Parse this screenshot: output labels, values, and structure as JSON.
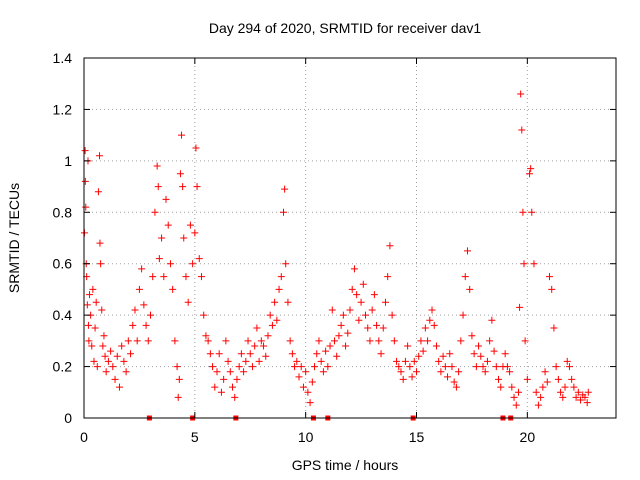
{
  "chart_data": {
    "type": "scatter",
    "title": "Day 294 of 2020, SRMTID for receiver dav1",
    "xlabel": "GPS time / hours",
    "ylabel": "SRMTID / TECUs",
    "xlim": [
      0,
      24
    ],
    "ylim": [
      0,
      1.4
    ],
    "xticks": [
      0,
      5,
      10,
      15,
      20
    ],
    "yticks": [
      0,
      0.2,
      0.4,
      0.6,
      0.8,
      1.0,
      1.2,
      1.4
    ],
    "ytick_labels": [
      "0",
      "0.2",
      "0.4",
      "0.6",
      "0.8",
      "1",
      "1.2",
      "1.4"
    ],
    "grid": true,
    "marker": "plus",
    "color": "#ff0000",
    "baseline_markers_x": [
      2.95,
      4.9,
      6.85,
      10.35,
      11.0,
      14.85,
      18.9,
      19.25
    ],
    "series": [
      {
        "name": "dav1",
        "points": [
          [
            0.02,
            0.72
          ],
          [
            0.05,
            1.04
          ],
          [
            0.06,
            0.92
          ],
          [
            0.08,
            0.82
          ],
          [
            0.1,
            0.6
          ],
          [
            0.12,
            0.55
          ],
          [
            0.15,
            0.44
          ],
          [
            0.18,
            1.0
          ],
          [
            0.2,
            0.36
          ],
          [
            0.22,
            0.3
          ],
          [
            0.25,
            0.48
          ],
          [
            0.3,
            0.4
          ],
          [
            0.35,
            0.28
          ],
          [
            0.4,
            0.5
          ],
          [
            0.45,
            0.22
          ],
          [
            0.5,
            0.35
          ],
          [
            0.55,
            0.45
          ],
          [
            0.6,
            0.2
          ],
          [
            0.65,
            0.88
          ],
          [
            0.7,
            1.02
          ],
          [
            0.72,
            0.68
          ],
          [
            0.75,
            0.6
          ],
          [
            0.8,
            0.42
          ],
          [
            0.85,
            0.28
          ],
          [
            0.9,
            0.32
          ],
          [
            0.95,
            0.24
          ],
          [
            1.0,
            0.18
          ],
          [
            1.1,
            0.22
          ],
          [
            1.2,
            0.26
          ],
          [
            1.3,
            0.2
          ],
          [
            1.4,
            0.15
          ],
          [
            1.5,
            0.24
          ],
          [
            1.6,
            0.12
          ],
          [
            1.7,
            0.28
          ],
          [
            1.8,
            0.22
          ],
          [
            1.9,
            0.18
          ],
          [
            2.0,
            0.3
          ],
          [
            2.1,
            0.25
          ],
          [
            2.2,
            0.36
          ],
          [
            2.3,
            0.42
          ],
          [
            2.4,
            0.3
          ],
          [
            2.5,
            0.5
          ],
          [
            2.6,
            0.58
          ],
          [
            2.7,
            0.44
          ],
          [
            2.8,
            0.36
          ],
          [
            2.9,
            0.3
          ],
          [
            3.0,
            0.4
          ],
          [
            3.1,
            0.55
          ],
          [
            3.2,
            0.8
          ],
          [
            3.3,
            0.98
          ],
          [
            3.35,
            0.9
          ],
          [
            3.4,
            0.62
          ],
          [
            3.5,
            0.7
          ],
          [
            3.6,
            0.55
          ],
          [
            3.7,
            0.85
          ],
          [
            3.8,
            0.75
          ],
          [
            3.9,
            0.6
          ],
          [
            4.0,
            0.5
          ],
          [
            4.1,
            0.3
          ],
          [
            4.2,
            0.2
          ],
          [
            4.25,
            0.08
          ],
          [
            4.3,
            0.15
          ],
          [
            4.35,
            0.95
          ],
          [
            4.4,
            1.1
          ],
          [
            4.45,
            0.9
          ],
          [
            4.5,
            0.7
          ],
          [
            4.6,
            0.55
          ],
          [
            4.7,
            0.45
          ],
          [
            4.8,
            0.75
          ],
          [
            4.9,
            0.6
          ],
          [
            5.0,
            0.72
          ],
          [
            5.05,
            1.05
          ],
          [
            5.1,
            0.9
          ],
          [
            5.2,
            0.62
          ],
          [
            5.3,
            0.55
          ],
          [
            5.4,
            0.4
          ],
          [
            5.5,
            0.32
          ],
          [
            5.6,
            0.3
          ],
          [
            5.7,
            0.25
          ],
          [
            5.8,
            0.2
          ],
          [
            5.9,
            0.12
          ],
          [
            6.0,
            0.18
          ],
          [
            6.1,
            0.25
          ],
          [
            6.2,
            0.1
          ],
          [
            6.3,
            0.15
          ],
          [
            6.4,
            0.3
          ],
          [
            6.5,
            0.22
          ],
          [
            6.6,
            0.18
          ],
          [
            6.7,
            0.12
          ],
          [
            6.8,
            0.08
          ],
          [
            6.9,
            0.15
          ],
          [
            7.0,
            0.2
          ],
          [
            7.1,
            0.25
          ],
          [
            7.2,
            0.18
          ],
          [
            7.3,
            0.22
          ],
          [
            7.4,
            0.3
          ],
          [
            7.5,
            0.25
          ],
          [
            7.6,
            0.2
          ],
          [
            7.7,
            0.28
          ],
          [
            7.8,
            0.35
          ],
          [
            7.9,
            0.22
          ],
          [
            8.0,
            0.3
          ],
          [
            8.1,
            0.28
          ],
          [
            8.2,
            0.24
          ],
          [
            8.3,
            0.32
          ],
          [
            8.4,
            0.4
          ],
          [
            8.5,
            0.36
          ],
          [
            8.6,
            0.45
          ],
          [
            8.7,
            0.38
          ],
          [
            8.8,
            0.5
          ],
          [
            8.9,
            0.55
          ],
          [
            9.0,
            0.8
          ],
          [
            9.05,
            0.89
          ],
          [
            9.1,
            0.6
          ],
          [
            9.2,
            0.45
          ],
          [
            9.3,
            0.3
          ],
          [
            9.4,
            0.25
          ],
          [
            9.5,
            0.2
          ],
          [
            9.6,
            0.22
          ],
          [
            9.7,
            0.16
          ],
          [
            9.8,
            0.2
          ],
          [
            9.9,
            0.12
          ],
          [
            10.0,
            0.18
          ],
          [
            10.1,
            0.1
          ],
          [
            10.2,
            0.06
          ],
          [
            10.3,
            0.14
          ],
          [
            10.4,
            0.2
          ],
          [
            10.5,
            0.25
          ],
          [
            10.6,
            0.3
          ],
          [
            10.7,
            0.22
          ],
          [
            10.8,
            0.18
          ],
          [
            10.9,
            0.26
          ],
          [
            11.0,
            0.2
          ],
          [
            11.1,
            0.28
          ],
          [
            11.2,
            0.42
          ],
          [
            11.3,
            0.3
          ],
          [
            11.4,
            0.24
          ],
          [
            11.5,
            0.32
          ],
          [
            11.6,
            0.36
          ],
          [
            11.7,
            0.4
          ],
          [
            11.8,
            0.28
          ],
          [
            11.9,
            0.33
          ],
          [
            12.0,
            0.42
          ],
          [
            12.1,
            0.5
          ],
          [
            12.2,
            0.58
          ],
          [
            12.3,
            0.48
          ],
          [
            12.4,
            0.38
          ],
          [
            12.5,
            0.45
          ],
          [
            12.6,
            0.52
          ],
          [
            12.7,
            0.4
          ],
          [
            12.8,
            0.35
          ],
          [
            12.9,
            0.3
          ],
          [
            13.0,
            0.42
          ],
          [
            13.1,
            0.48
          ],
          [
            13.2,
            0.36
          ],
          [
            13.3,
            0.3
          ],
          [
            13.4,
            0.25
          ],
          [
            13.5,
            0.35
          ],
          [
            13.6,
            0.45
          ],
          [
            13.7,
            0.55
          ],
          [
            13.8,
            0.67
          ],
          [
            13.9,
            0.4
          ],
          [
            14.0,
            0.3
          ],
          [
            14.1,
            0.22
          ],
          [
            14.2,
            0.2
          ],
          [
            14.3,
            0.18
          ],
          [
            14.4,
            0.15
          ],
          [
            14.5,
            0.22
          ],
          [
            14.6,
            0.28
          ],
          [
            14.7,
            0.2
          ],
          [
            14.8,
            0.16
          ],
          [
            14.9,
            0.22
          ],
          [
            15.0,
            0.18
          ],
          [
            15.1,
            0.24
          ],
          [
            15.2,
            0.3
          ],
          [
            15.3,
            0.26
          ],
          [
            15.4,
            0.35
          ],
          [
            15.5,
            0.3
          ],
          [
            15.6,
            0.38
          ],
          [
            15.7,
            0.42
          ],
          [
            15.8,
            0.36
          ],
          [
            15.9,
            0.28
          ],
          [
            16.0,
            0.22
          ],
          [
            16.1,
            0.18
          ],
          [
            16.2,
            0.24
          ],
          [
            16.3,
            0.2
          ],
          [
            16.4,
            0.16
          ],
          [
            16.5,
            0.25
          ],
          [
            16.6,
            0.2
          ],
          [
            16.7,
            0.14
          ],
          [
            16.8,
            0.12
          ],
          [
            16.9,
            0.18
          ],
          [
            17.0,
            0.3
          ],
          [
            17.1,
            0.4
          ],
          [
            17.2,
            0.55
          ],
          [
            17.3,
            0.65
          ],
          [
            17.4,
            0.5
          ],
          [
            17.5,
            0.32
          ],
          [
            17.6,
            0.25
          ],
          [
            17.7,
            0.2
          ],
          [
            17.8,
            0.28
          ],
          [
            17.9,
            0.24
          ],
          [
            18.0,
            0.2
          ],
          [
            18.1,
            0.18
          ],
          [
            18.2,
            0.22
          ],
          [
            18.3,
            0.3
          ],
          [
            18.4,
            0.38
          ],
          [
            18.5,
            0.26
          ],
          [
            18.6,
            0.2
          ],
          [
            18.7,
            0.15
          ],
          [
            18.8,
            0.12
          ],
          [
            18.9,
            0.2
          ],
          [
            19.0,
            0.25
          ],
          [
            19.1,
            0.2
          ],
          [
            19.2,
            0.18
          ],
          [
            19.3,
            0.12
          ],
          [
            19.4,
            0.08
          ],
          [
            19.5,
            0.05
          ],
          [
            19.6,
            0.1
          ],
          [
            19.65,
            0.43
          ],
          [
            19.7,
            1.26
          ],
          [
            19.75,
            1.12
          ],
          [
            19.8,
            0.8
          ],
          [
            19.85,
            0.6
          ],
          [
            19.9,
            0.3
          ],
          [
            20.0,
            0.15
          ],
          [
            20.1,
            0.95
          ],
          [
            20.15,
            0.97
          ],
          [
            20.2,
            0.8
          ],
          [
            20.3,
            0.6
          ],
          [
            20.4,
            0.1
          ],
          [
            20.5,
            0.05
          ],
          [
            20.6,
            0.08
          ],
          [
            20.7,
            0.12
          ],
          [
            20.8,
            0.18
          ],
          [
            20.9,
            0.14
          ],
          [
            21.0,
            0.55
          ],
          [
            21.1,
            0.5
          ],
          [
            21.2,
            0.35
          ],
          [
            21.3,
            0.2
          ],
          [
            21.4,
            0.15
          ],
          [
            21.5,
            0.1
          ],
          [
            21.6,
            0.08
          ],
          [
            21.7,
            0.12
          ],
          [
            21.8,
            0.22
          ],
          [
            21.9,
            0.2
          ],
          [
            22.0,
            0.15
          ],
          [
            22.1,
            0.12
          ],
          [
            22.2,
            0.08
          ],
          [
            22.3,
            0.1
          ],
          [
            22.4,
            0.07
          ],
          [
            22.5,
            0.09
          ],
          [
            22.6,
            0.08
          ],
          [
            22.7,
            0.06
          ],
          [
            22.75,
            0.1
          ]
        ]
      }
    ]
  }
}
